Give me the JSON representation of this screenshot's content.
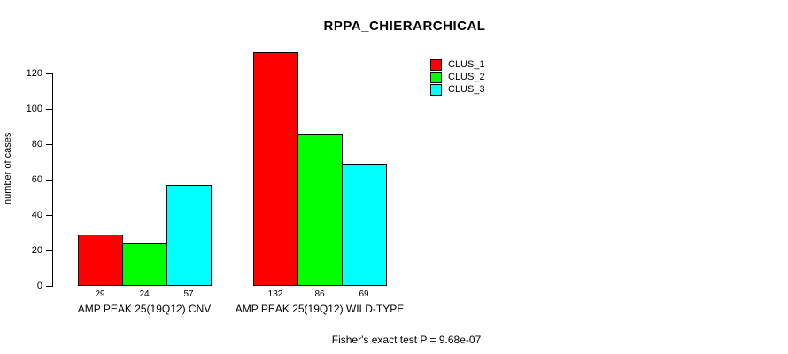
{
  "chart_data": {
    "type": "bar",
    "title": "RPPA_CHIERARCHICAL",
    "ylabel": "number of cases",
    "xlabel": "",
    "categories": [
      "AMP PEAK 25(19Q12) CNV",
      "AMP PEAK 25(19Q12) WILD-TYPE"
    ],
    "series": [
      {
        "name": "CLUS_1",
        "color": "#ff0000",
        "values": [
          29,
          132
        ]
      },
      {
        "name": "CLUS_2",
        "color": "#00ff00",
        "values": [
          24,
          86
        ]
      },
      {
        "name": "CLUS_3",
        "color": "#00ffff",
        "values": [
          57,
          69
        ]
      }
    ],
    "bar_labels": [
      [
        29,
        24,
        57
      ],
      [
        132,
        86,
        69
      ]
    ],
    "yticks": [
      0,
      20,
      40,
      60,
      80,
      100,
      120
    ],
    "ylim": [
      0,
      132
    ],
    "grid": false,
    "legend_position": "top-right",
    "legend_entries": [
      "CLUS_1",
      "CLUS_2",
      "CLUS_3"
    ],
    "annotation": "Fisher's exact test P = 9.68e-07",
    "colors": {
      "background": "#ffffff",
      "axis": "#000000",
      "text": "#000000"
    }
  }
}
